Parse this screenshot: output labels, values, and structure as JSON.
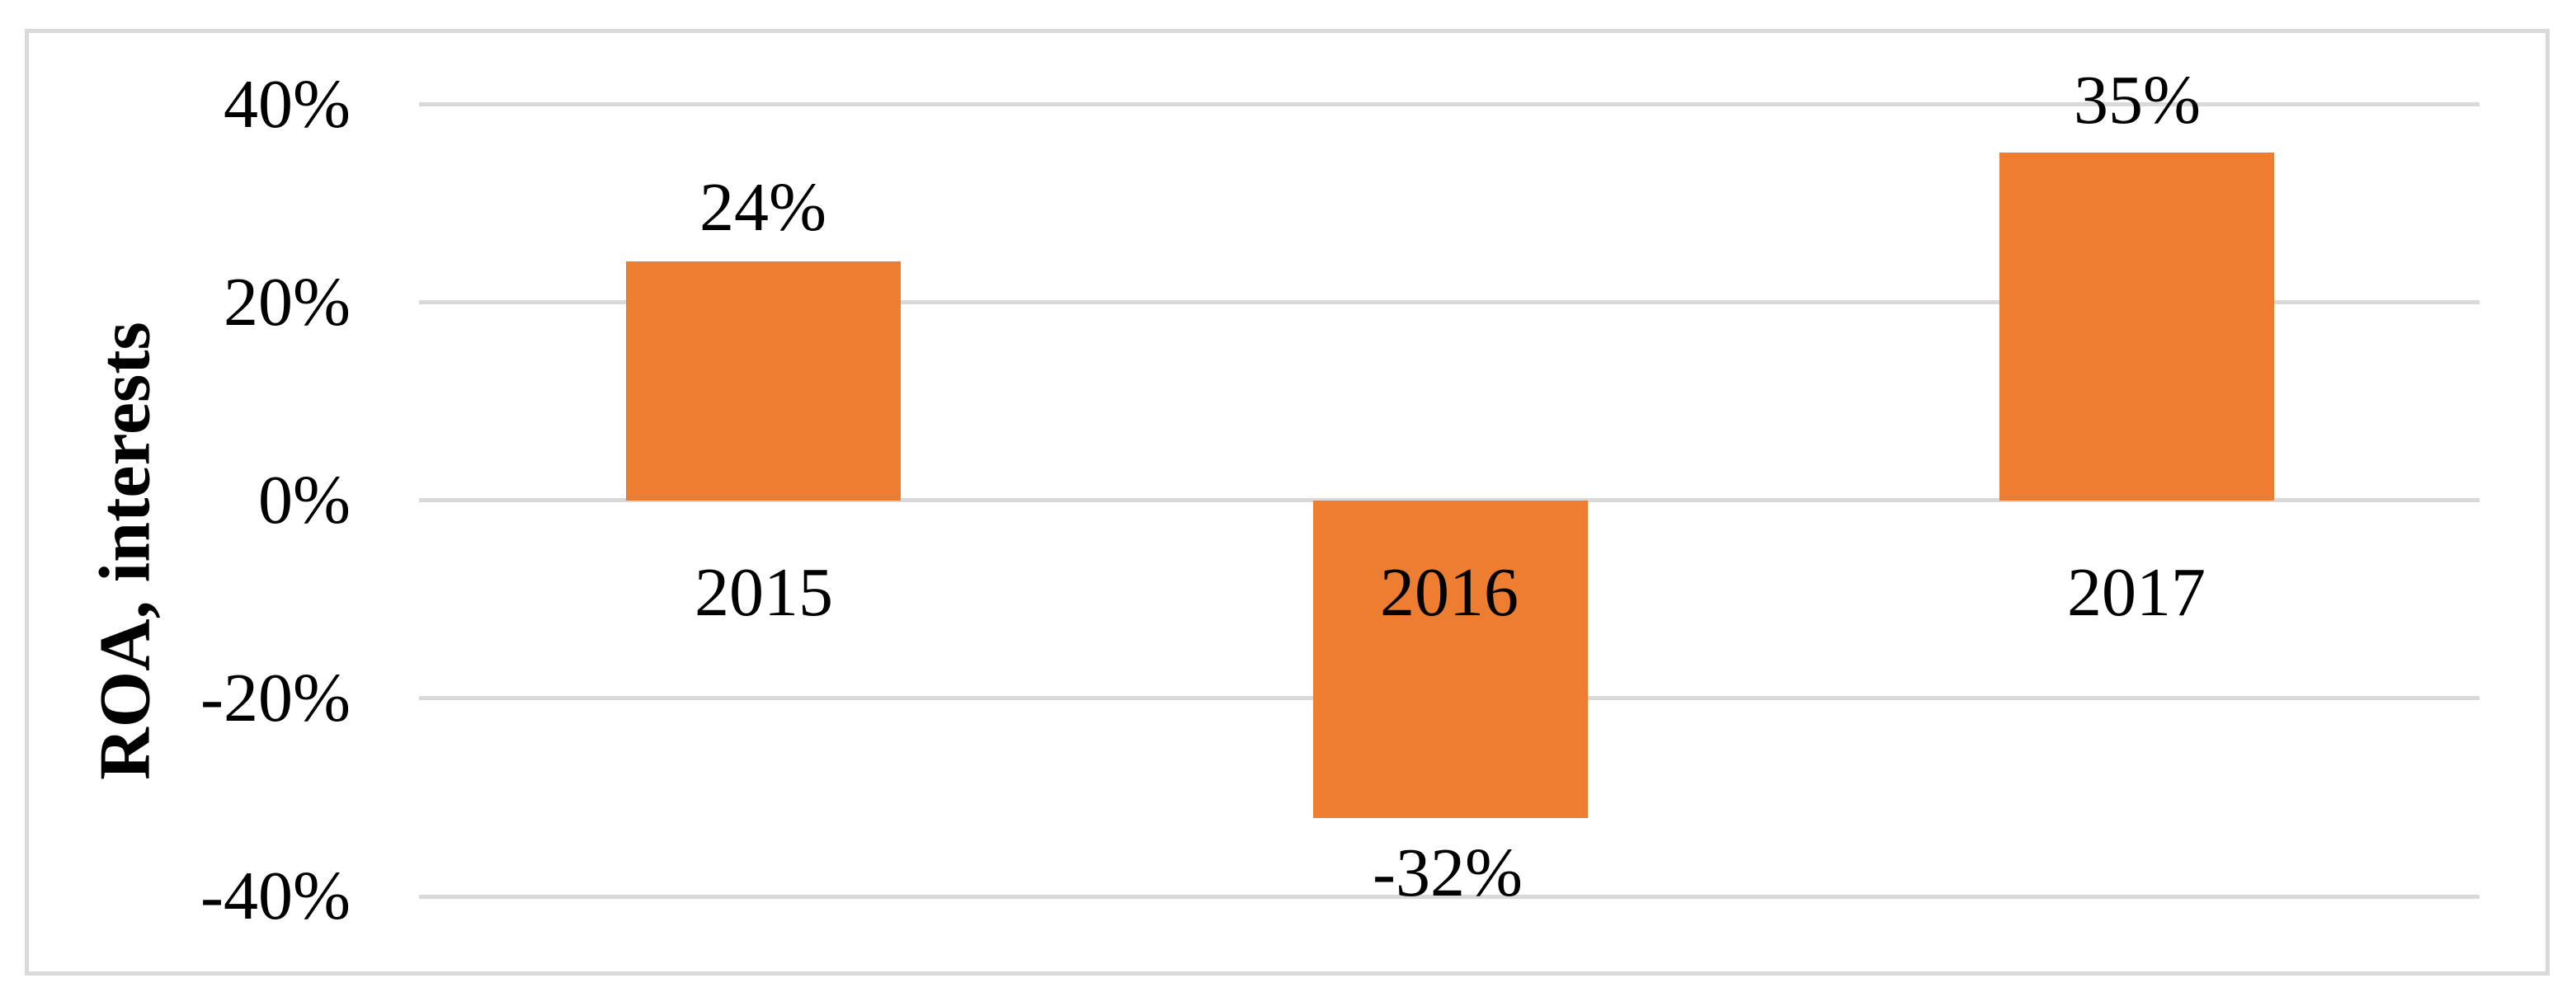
{
  "chart": {
    "y_axis_title": "ROA, interests",
    "y_ticks": [
      "40%",
      "20%",
      "0%",
      "-20%",
      "-40%"
    ],
    "bars": [
      {
        "category": "2015",
        "data_label": "24%",
        "value": 24
      },
      {
        "category": "2016",
        "data_label": "-32%",
        "value": -32
      },
      {
        "category": "2017",
        "data_label": "35%",
        "value": 35
      }
    ],
    "bar_color": "#ED7D31",
    "gridline_color": "#D9D9D9",
    "frame_color": "#D9D9D9"
  },
  "chart_data": {
    "type": "bar",
    "categories": [
      "2015",
      "2016",
      "2017"
    ],
    "values": [
      24,
      -32,
      35
    ],
    "data_labels": [
      "24%",
      "-32%",
      "35%"
    ],
    "title": "",
    "xlabel": "",
    "ylabel": "ROA, interests",
    "ylim": [
      -40,
      40
    ],
    "yticks": [
      40,
      20,
      0,
      -20,
      -40
    ],
    "ytick_labels": [
      "40%",
      "20%",
      "0%",
      "-20%",
      "-40%"
    ],
    "grid": true,
    "legend_position": "none",
    "bar_color": "#ED7D31"
  }
}
